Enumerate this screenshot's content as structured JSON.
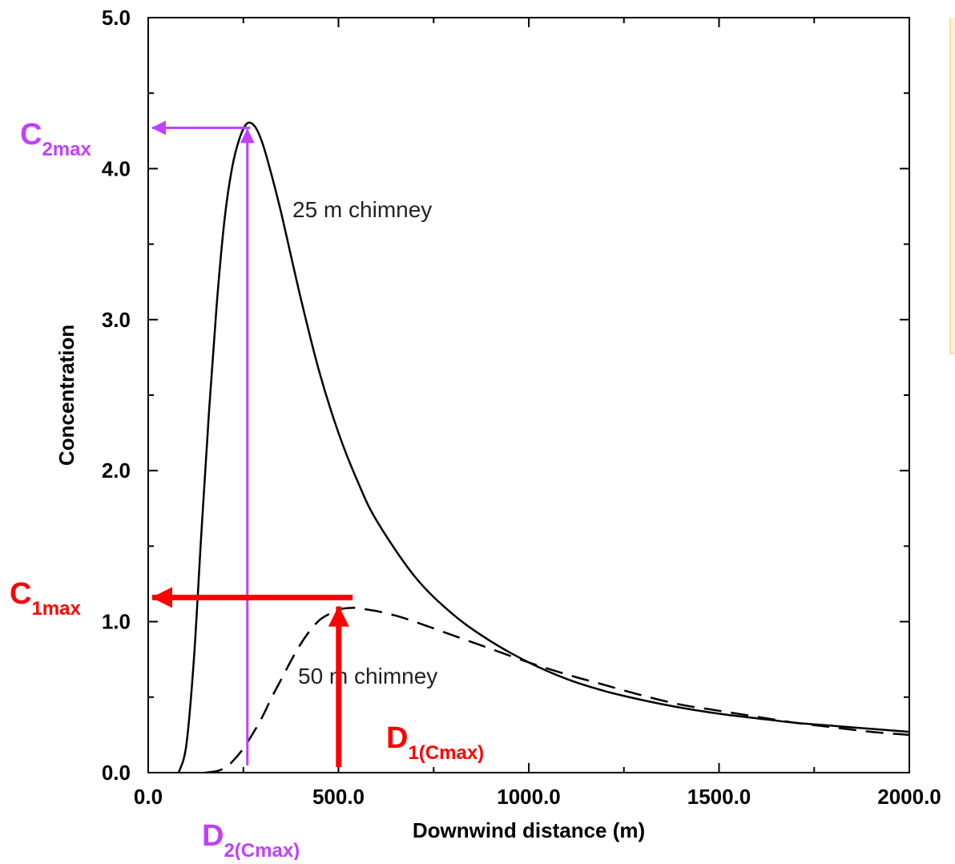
{
  "chart_data": {
    "type": "line",
    "xlabel": "Downwind distance (m)",
    "ylabel": "Concentration",
    "xlim": [
      0,
      2000
    ],
    "ylim": [
      0,
      5
    ],
    "x_ticks": [
      "0.0",
      "500.0",
      "1000.0",
      "1500.0",
      "2000.0"
    ],
    "y_ticks": [
      "0.0",
      "1.0",
      "2.0",
      "3.0",
      "4.0",
      "5.0"
    ],
    "grid": false,
    "series": [
      {
        "name": "25 m chimney",
        "style": "solid",
        "color": "#000000",
        "x": [
          80,
          100,
          120,
          140,
          160,
          180,
          200,
          220,
          240,
          260,
          280,
          300,
          325,
          350,
          400,
          450,
          500,
          550,
          600,
          700,
          800,
          900,
          1000,
          1100,
          1200,
          1300,
          1400,
          1500,
          1600,
          1700,
          1800,
          1900,
          2000
        ],
        "values": [
          0.0,
          0.18,
          0.75,
          1.6,
          2.4,
          3.1,
          3.65,
          4.0,
          4.2,
          4.3,
          4.28,
          4.17,
          3.95,
          3.7,
          3.15,
          2.65,
          2.25,
          1.93,
          1.67,
          1.3,
          1.05,
          0.87,
          0.73,
          0.62,
          0.54,
          0.48,
          0.43,
          0.39,
          0.36,
          0.33,
          0.31,
          0.29,
          0.27
        ]
      },
      {
        "name": "50 m chimney",
        "style": "dashed",
        "color": "#000000",
        "x": [
          150,
          180,
          200,
          220,
          250,
          280,
          300,
          325,
          350,
          375,
          400,
          425,
          450,
          475,
          500,
          525,
          550,
          575,
          600,
          650,
          700,
          800,
          900,
          1000,
          1100,
          1200,
          1300,
          1400,
          1500,
          1600,
          1700,
          1800,
          1900,
          2000
        ],
        "values": [
          0.0,
          0.01,
          0.03,
          0.07,
          0.16,
          0.28,
          0.37,
          0.5,
          0.62,
          0.74,
          0.85,
          0.94,
          1.01,
          1.05,
          1.08,
          1.09,
          1.09,
          1.08,
          1.07,
          1.04,
          1.0,
          0.91,
          0.82,
          0.73,
          0.65,
          0.58,
          0.51,
          0.45,
          0.41,
          0.37,
          0.33,
          0.3,
          0.27,
          0.25
        ]
      }
    ],
    "annotations": [
      {
        "text": "C",
        "sub": "2max",
        "color": "#c040ff",
        "points_to_y": 4.27,
        "from_x": 250
      },
      {
        "text": "D",
        "sub": "2(Cmax)",
        "color": "#c040ff",
        "at_x": 250
      },
      {
        "text": "C",
        "sub": "1max",
        "color": "#ff0000",
        "points_to_y": 1.16,
        "from_x": 540
      },
      {
        "text": "D",
        "sub": "1(Cmax)",
        "color": "#ff0000",
        "at_x": 530
      }
    ]
  },
  "panel_color": "#fdf3d2"
}
